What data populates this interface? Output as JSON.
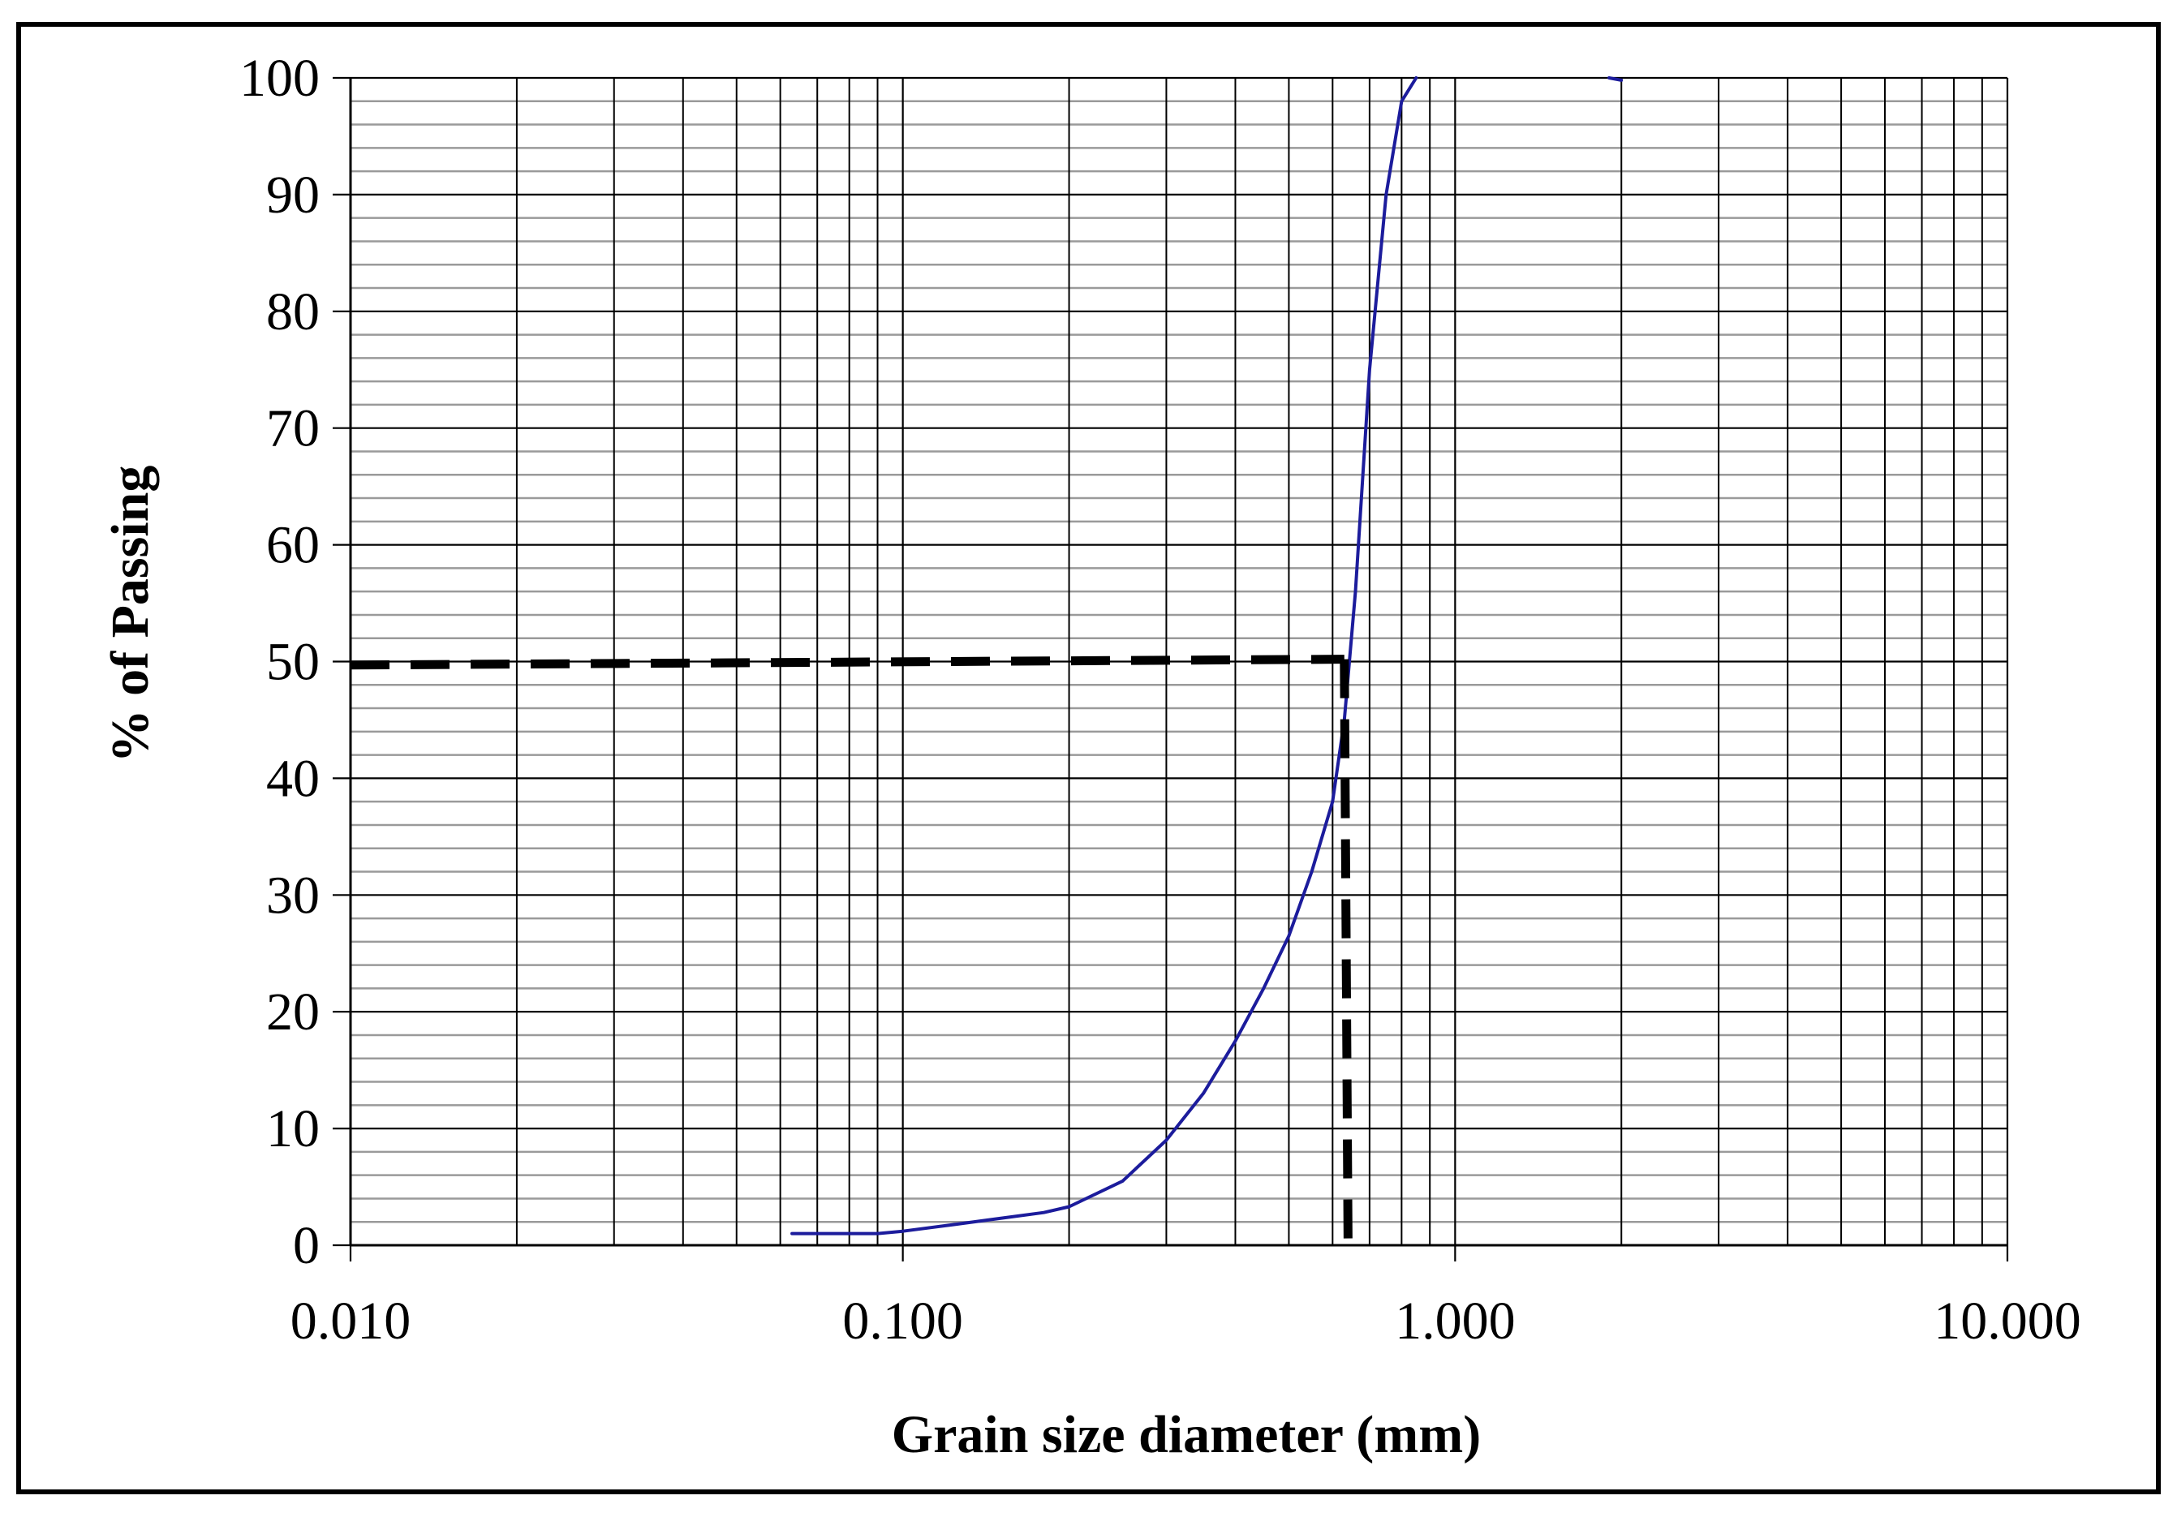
{
  "chart_data": {
    "type": "line",
    "title": "",
    "xlabel": "Grain size diameter  (mm)",
    "ylabel": "% of Passing",
    "x_scale": "log",
    "xlim": [
      0.01,
      10
    ],
    "ylim": [
      0,
      100
    ],
    "grid": true,
    "x_ticks": [
      {
        "value": 0.01,
        "label": "0.010"
      },
      {
        "value": 0.1,
        "label": "0.100"
      },
      {
        "value": 1,
        "label": "1.000"
      },
      {
        "value": 10,
        "label": "10.000"
      }
    ],
    "y_ticks": [
      {
        "value": 0,
        "label": "0"
      },
      {
        "value": 10,
        "label": "10"
      },
      {
        "value": 20,
        "label": "20"
      },
      {
        "value": 30,
        "label": "30"
      },
      {
        "value": 40,
        "label": "40"
      },
      {
        "value": 50,
        "label": "50"
      },
      {
        "value": 60,
        "label": "60"
      },
      {
        "value": 70,
        "label": "70"
      },
      {
        "value": 80,
        "label": "80"
      },
      {
        "value": 90,
        "label": "90"
      },
      {
        "value": 100,
        "label": "100"
      }
    ],
    "series": [
      {
        "color": "#1c1c9c",
        "style": "solid",
        "x": [
          0.063,
          0.075,
          0.09,
          0.1,
          0.125,
          0.15,
          0.18,
          0.2,
          0.25,
          0.3,
          0.35,
          0.4,
          0.45,
          0.5,
          0.55,
          0.6,
          0.63,
          0.66,
          0.7,
          0.75,
          0.8,
          0.85
        ],
        "y": [
          1,
          1,
          1,
          1.2,
          1.8,
          2.3,
          2.8,
          3.3,
          5.5,
          9,
          13,
          17.5,
          22,
          26.5,
          32,
          38,
          45,
          56,
          75,
          90,
          98,
          100
        ]
      },
      {
        "color": "#1c1c9c",
        "style": "solid",
        "x": [
          1.9,
          2.0
        ],
        "y": [
          100,
          99.8
        ]
      }
    ],
    "reference_lines": [
      {
        "color": "#000000",
        "style": "dashed",
        "x": [
          0.01,
          0.63
        ],
        "y": [
          49.7,
          50.2
        ]
      },
      {
        "color": "#000000",
        "style": "dashed",
        "x": [
          0.63,
          0.64
        ],
        "y": [
          50.2,
          0
        ]
      }
    ]
  }
}
